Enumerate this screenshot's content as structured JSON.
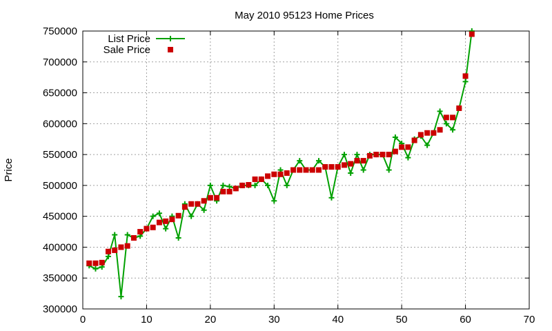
{
  "chart_data": {
    "type": "line",
    "title": "May 2010 95123 Home Prices",
    "xlabel": "",
    "ylabel": "Price",
    "xlim": [
      0,
      70
    ],
    "ylim": [
      300000,
      750000
    ],
    "x_ticks": [
      "0",
      "10",
      "20",
      "30",
      "40",
      "50",
      "60",
      "70"
    ],
    "y_ticks": [
      "300000",
      "350000",
      "400000",
      "450000",
      "500000",
      "550000",
      "600000",
      "650000",
      "700000",
      "750000"
    ],
    "grid": true,
    "legend_position": "top-left",
    "series": [
      {
        "name": "List Price",
        "style": "line+plus",
        "color": "#00a000",
        "x": [
          1,
          2,
          3,
          4,
          5,
          6,
          7,
          8,
          9,
          10,
          11,
          12,
          13,
          14,
          15,
          16,
          17,
          18,
          19,
          20,
          21,
          22,
          23,
          24,
          25,
          26,
          27,
          28,
          29,
          30,
          31,
          32,
          33,
          34,
          35,
          36,
          37,
          38,
          39,
          40,
          41,
          42,
          43,
          44,
          45,
          46,
          47,
          48,
          49,
          50,
          51,
          52,
          53,
          54,
          55,
          56,
          57,
          58,
          59,
          60,
          61
        ],
        "y": [
          370000,
          365000,
          368000,
          385000,
          420000,
          320000,
          420000,
          415000,
          418000,
          430000,
          450000,
          455000,
          430000,
          450000,
          415000,
          470000,
          450000,
          470000,
          460000,
          500000,
          475000,
          500000,
          498000,
          495000,
          500000,
          500000,
          500000,
          510000,
          500000,
          475000,
          525000,
          500000,
          525000,
          540000,
          525000,
          525000,
          540000,
          530000,
          480000,
          530000,
          550000,
          520000,
          550000,
          525000,
          550000,
          550000,
          550000,
          525000,
          578000,
          568000,
          545000,
          575000,
          580000,
          565000,
          585000,
          620000,
          600000,
          590000,
          625000,
          668000,
          750000
        ]
      },
      {
        "name": "Sale Price",
        "style": "square",
        "color": "#cc0000",
        "x": [
          1,
          2,
          3,
          4,
          5,
          6,
          7,
          8,
          9,
          10,
          11,
          12,
          13,
          14,
          15,
          16,
          17,
          18,
          19,
          20,
          21,
          22,
          23,
          24,
          25,
          26,
          27,
          28,
          29,
          30,
          31,
          32,
          33,
          34,
          35,
          36,
          37,
          38,
          39,
          40,
          41,
          42,
          43,
          44,
          45,
          46,
          47,
          48,
          49,
          50,
          51,
          52,
          53,
          54,
          55,
          56,
          57,
          58,
          59,
          60,
          61
        ],
        "y": [
          374000,
          374000,
          375000,
          393000,
          395000,
          400000,
          402000,
          415000,
          425000,
          430000,
          432000,
          440000,
          442000,
          445000,
          451000,
          465000,
          470000,
          470000,
          475000,
          480000,
          480000,
          490000,
          490000,
          495000,
          500000,
          501000,
          510000,
          510000,
          515000,
          518000,
          518000,
          520000,
          525000,
          525000,
          525000,
          525000,
          525000,
          530000,
          530000,
          530000,
          533000,
          535000,
          540000,
          540000,
          548000,
          550000,
          550000,
          550000,
          555000,
          562000,
          562000,
          573000,
          582000,
          585000,
          585000,
          590000,
          610000,
          610000,
          625000,
          677000,
          745000
        ]
      }
    ]
  }
}
